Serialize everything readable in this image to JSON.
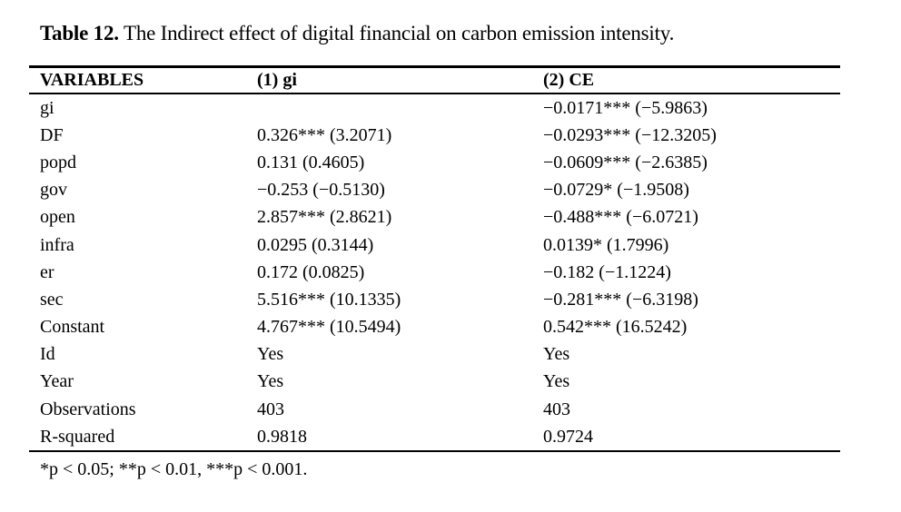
{
  "title": {
    "label": "Table 12.",
    "text": "The Indirect effect of digital financial on carbon emission intensity."
  },
  "table": {
    "columns": [
      "VARIABLES",
      "(1) gi",
      "(2) CE"
    ],
    "rows": [
      [
        "gi",
        "",
        "−0.0171*** (−5.9863)"
      ],
      [
        "DF",
        "0.326*** (3.2071)",
        "−0.0293*** (−12.3205)"
      ],
      [
        "popd",
        "0.131 (0.4605)",
        "−0.0609*** (−2.6385)"
      ],
      [
        "gov",
        "−0.253 (−0.5130)",
        "−0.0729* (−1.9508)"
      ],
      [
        "open",
        "2.857*** (2.8621)",
        "−0.488*** (−6.0721)"
      ],
      [
        "infra",
        "0.0295 (0.3144)",
        "0.0139* (1.7996)"
      ],
      [
        "er",
        "0.172 (0.0825)",
        "−0.182 (−1.1224)"
      ],
      [
        "sec",
        "5.516*** (10.1335)",
        "−0.281*** (−6.3198)"
      ],
      [
        "Constant",
        "4.767*** (10.5494)",
        "0.542*** (16.5242)"
      ],
      [
        "Id",
        "Yes",
        "Yes"
      ],
      [
        "Year",
        "Yes",
        "Yes"
      ],
      [
        "Observations",
        "403",
        "403"
      ],
      [
        "R-squared",
        "0.9818",
        "0.9724"
      ]
    ]
  },
  "footnote": "*p < 0.05; **p < 0.01, ***p < 0.001.",
  "colors": {
    "text": "#000000",
    "background": "#ffffff",
    "rule": "#000000"
  }
}
